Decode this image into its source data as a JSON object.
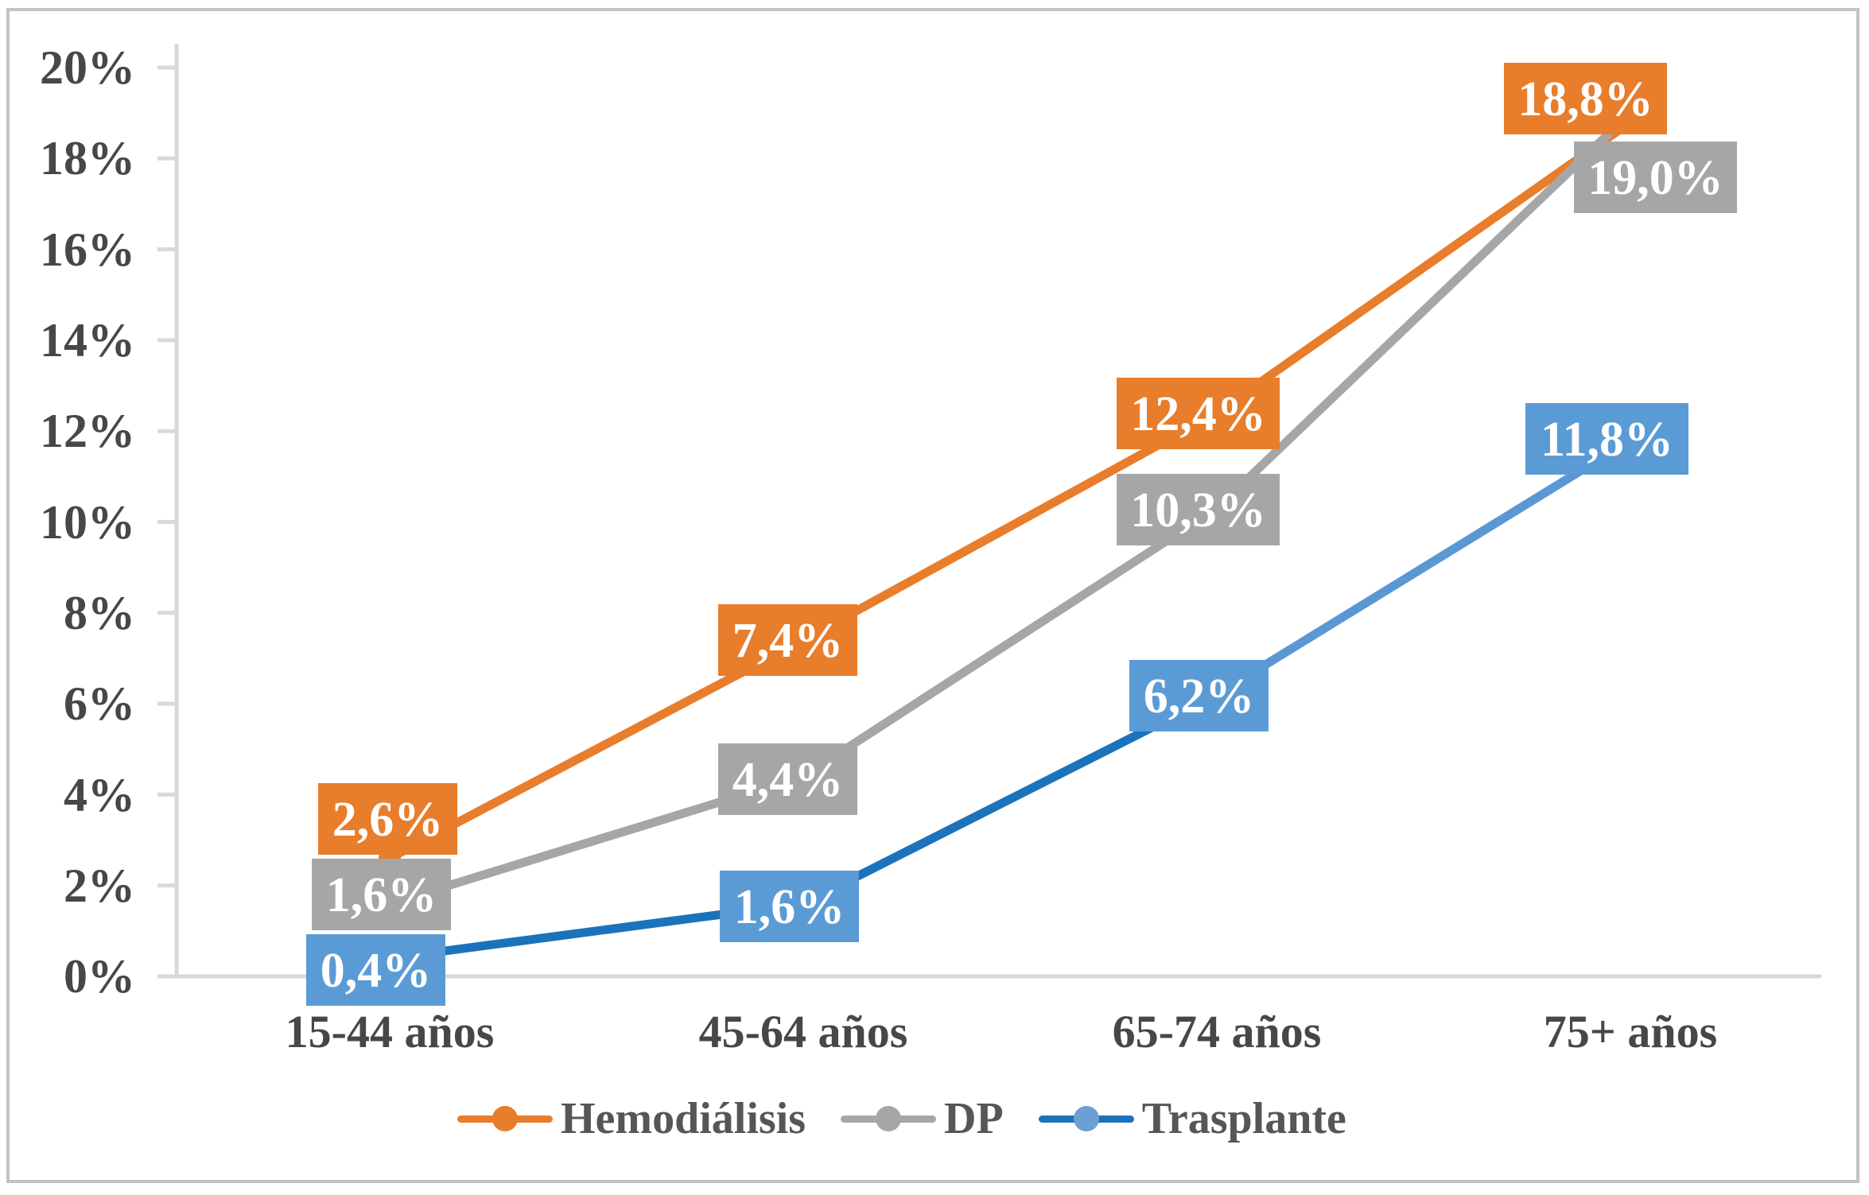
{
  "chart_data": {
    "type": "line",
    "title": "",
    "categories": [
      "15-44 años",
      "45-64 años",
      "65-74 años",
      "75+ años"
    ],
    "series": [
      {
        "name": "Hemodiálisis",
        "values": [
          2.6,
          7.4,
          12.4,
          18.8
        ],
        "labels": [
          "2,6%",
          "7,4%",
          "12,4%",
          "18,8%"
        ],
        "color": "#E87D2B",
        "label_bg": "#E87D2B",
        "label_text_color": "#FFFFFF"
      },
      {
        "name": "DP",
        "values": [
          1.6,
          4.4,
          10.3,
          19.0
        ],
        "labels": [
          "1,6%",
          "4,4%",
          "10,3%",
          "19,0%"
        ],
        "color": "#A6A6A6",
        "label_bg": "#A6A6A6",
        "label_text_color": "#FFFFFF"
      },
      {
        "name": "Trasplante",
        "values": [
          0.4,
          1.6,
          6.2,
          11.8
        ],
        "labels": [
          "0,4%",
          "1,6%",
          "6,2%",
          "11,8%"
        ],
        "color": "#1B73BC",
        "segment_colors": [
          "#1B73BC",
          "#1B73BC",
          "#5B97D3"
        ],
        "marker_color": "#6C9FD4",
        "label_bg": "#5B9BD5",
        "label_text_color": "#FFFFFF"
      }
    ],
    "y_tick_labels": [
      "20%",
      "18%",
      "16%",
      "14%",
      "12%",
      "10%",
      "8%",
      "6%",
      "4%",
      "2%",
      "0%"
    ],
    "ylim": [
      0,
      20
    ],
    "ystep": 2,
    "grid": false,
    "legend_position": "bottom",
    "axis_color": "#D9D9D9",
    "axis_text_color": "#474747",
    "legend_text_color": "#565656",
    "plot_bg": "#FFFFFF"
  }
}
